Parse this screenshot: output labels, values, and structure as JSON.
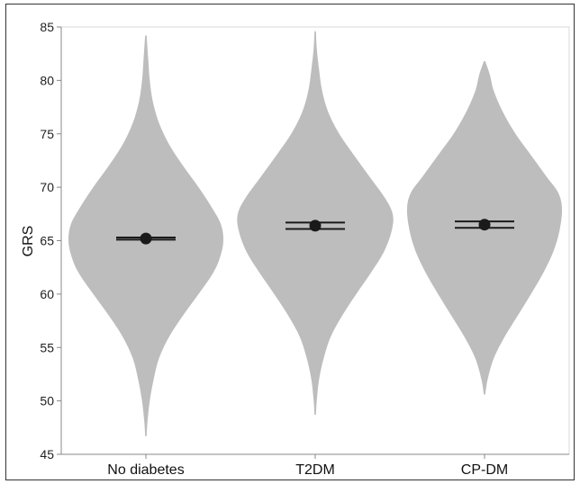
{
  "chart_data": {
    "type": "violin",
    "title": "",
    "xlabel": "",
    "ylabel": "GRS",
    "ylim": [
      45,
      85
    ],
    "yticks": [
      45,
      50,
      55,
      60,
      65,
      70,
      75,
      80,
      85
    ],
    "grid": false,
    "legend": "none",
    "colors": {
      "violin_fill": "#bdbdbd",
      "marker": "#1a1a1a",
      "axis": "#888888",
      "frame": "#333333"
    },
    "groups": [
      {
        "name": "No diabetes",
        "mean": 65.2,
        "ci": [
          65.1,
          65.3
        ],
        "min": 46.7,
        "max": 84.2,
        "density": [
          [
            46.7,
            0.0
          ],
          [
            48,
            0.02
          ],
          [
            50,
            0.05
          ],
          [
            52,
            0.1
          ],
          [
            54,
            0.17
          ],
          [
            56,
            0.3
          ],
          [
            58,
            0.48
          ],
          [
            60,
            0.68
          ],
          [
            62,
            0.87
          ],
          [
            63.5,
            0.96
          ],
          [
            65,
            1.0
          ],
          [
            66.5,
            0.97
          ],
          [
            68,
            0.86
          ],
          [
            70,
            0.68
          ],
          [
            72,
            0.48
          ],
          [
            74,
            0.3
          ],
          [
            76,
            0.17
          ],
          [
            78,
            0.09
          ],
          [
            80,
            0.05
          ],
          [
            82,
            0.03
          ],
          [
            84.2,
            0.0
          ]
        ]
      },
      {
        "name": "T2DM",
        "mean": 66.4,
        "ci": [
          66.1,
          66.7
        ],
        "min": 48.7,
        "max": 84.6,
        "density": [
          [
            48.7,
            0.0
          ],
          [
            50,
            0.02
          ],
          [
            52,
            0.05
          ],
          [
            54,
            0.11
          ],
          [
            56,
            0.2
          ],
          [
            58,
            0.35
          ],
          [
            60,
            0.53
          ],
          [
            62,
            0.72
          ],
          [
            64,
            0.89
          ],
          [
            66,
            0.99
          ],
          [
            67.5,
            1.0
          ],
          [
            69,
            0.9
          ],
          [
            71,
            0.7
          ],
          [
            73,
            0.5
          ],
          [
            75,
            0.31
          ],
          [
            77,
            0.17
          ],
          [
            79,
            0.09
          ],
          [
            81,
            0.05
          ],
          [
            83,
            0.02
          ],
          [
            84.6,
            0.0
          ]
        ]
      },
      {
        "name": "CP-DM",
        "mean": 66.5,
        "ci": [
          66.2,
          66.8
        ],
        "min": 50.6,
        "max": 81.8,
        "density": [
          [
            50.6,
            0.0
          ],
          [
            52,
            0.04
          ],
          [
            54,
            0.12
          ],
          [
            56,
            0.26
          ],
          [
            58,
            0.43
          ],
          [
            60,
            0.6
          ],
          [
            62,
            0.76
          ],
          [
            64,
            0.89
          ],
          [
            66,
            0.97
          ],
          [
            68,
            1.0
          ],
          [
            69.5,
            0.95
          ],
          [
            71,
            0.8
          ],
          [
            73,
            0.6
          ],
          [
            75,
            0.4
          ],
          [
            77,
            0.24
          ],
          [
            79,
            0.12
          ],
          [
            80.5,
            0.07
          ],
          [
            81.8,
            0.0
          ]
        ]
      }
    ]
  }
}
